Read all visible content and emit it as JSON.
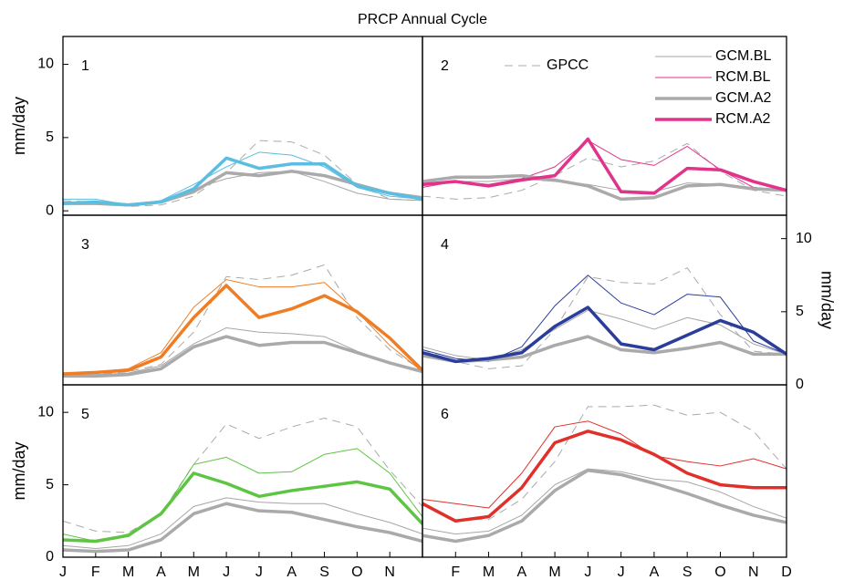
{
  "title": "PRCP Annual Cycle",
  "chart_data": [
    {
      "type": "line",
      "label": "1",
      "ylabel": "mm/day",
      "yaxis_side": "left",
      "ylim": [
        -0.3,
        11.9
      ],
      "yticks": [
        0,
        5,
        10
      ],
      "series": [
        {
          "name": "GPCC",
          "color": "#aaaaaa",
          "linewidth": 1,
          "dashed": true,
          "values": [
            0.7,
            0.6,
            0.3,
            0.4,
            1.0,
            2.6,
            4.8,
            4.7,
            3.8,
            1.8,
            0.8,
            0.7
          ]
        },
        {
          "name": "GCM.BL",
          "color": "#a6a6a6",
          "linewidth": 1,
          "values": [
            0.6,
            0.6,
            0.4,
            0.7,
            1.5,
            2.2,
            2.6,
            2.7,
            2.0,
            1.2,
            0.8,
            0.7
          ]
        },
        {
          "name": "RCM.BL",
          "color": "#5bbde0",
          "linewidth": 1,
          "values": [
            0.8,
            0.8,
            0.4,
            0.7,
            1.8,
            3.0,
            4.0,
            3.8,
            3.0,
            1.6,
            1.0,
            0.8
          ]
        },
        {
          "name": "GCM.A2",
          "color": "#aaaaaa",
          "linewidth": 3.5,
          "values": [
            0.5,
            0.5,
            0.4,
            0.6,
            1.3,
            2.6,
            2.4,
            2.7,
            2.4,
            1.8,
            1.2,
            0.9
          ]
        },
        {
          "name": "RCM.A2",
          "color": "#5bbde0",
          "linewidth": 3.5,
          "values": [
            0.5,
            0.6,
            0.4,
            0.6,
            1.5,
            3.6,
            2.9,
            3.2,
            3.2,
            1.7,
            1.2,
            0.8
          ]
        }
      ]
    },
    {
      "type": "line",
      "label": "2",
      "legend": "upper right",
      "ylim": [
        -0.3,
        11.9
      ],
      "series": [
        {
          "name": "GPCC",
          "color": "#aaaaaa",
          "linewidth": 1,
          "dashed": true,
          "values": [
            1.0,
            0.8,
            0.9,
            1.4,
            2.4,
            3.6,
            3.0,
            3.4,
            4.6,
            2.7,
            1.4,
            1.0
          ]
        },
        {
          "name": "GCM.BL",
          "color": "#a6a6a6",
          "linewidth": 1,
          "values": [
            1.7,
            2.0,
            2.0,
            2.2,
            2.0,
            1.8,
            1.4,
            1.3,
            1.9,
            1.8,
            1.6,
            1.4
          ]
        },
        {
          "name": "RCM.BL",
          "color": "#e0338a",
          "linewidth": 1,
          "values": [
            1.6,
            2.0,
            1.8,
            2.2,
            3.0,
            4.8,
            3.5,
            3.1,
            4.4,
            2.8,
            1.6,
            1.4
          ]
        },
        {
          "name": "GCM.A2",
          "color": "#aaaaaa",
          "linewidth": 3.5,
          "values": [
            2.0,
            2.3,
            2.3,
            2.4,
            2.1,
            1.7,
            0.8,
            0.9,
            1.7,
            1.8,
            1.5,
            1.4
          ]
        },
        {
          "name": "RCM.A2",
          "color": "#e0338a",
          "linewidth": 3.5,
          "values": [
            1.8,
            2.0,
            1.7,
            2.1,
            2.4,
            4.9,
            1.3,
            1.2,
            2.9,
            2.8,
            2.0,
            1.4
          ]
        }
      ]
    },
    {
      "type": "line",
      "label": "3",
      "ylim": [
        0,
        11.6
      ],
      "series": [
        {
          "name": "GPCC",
          "color": "#aaaaaa",
          "linewidth": 1,
          "dashed": true,
          "values": [
            0.7,
            0.7,
            0.9,
            1.4,
            3.6,
            7.4,
            7.2,
            7.5,
            8.2,
            4.6,
            2.4,
            1.0
          ]
        },
        {
          "name": "GCM.BL",
          "color": "#a6a6a6",
          "linewidth": 1,
          "values": [
            0.6,
            0.7,
            0.8,
            1.3,
            2.8,
            3.9,
            3.6,
            3.5,
            3.3,
            2.3,
            1.5,
            1.0
          ]
        },
        {
          "name": "RCM.BL",
          "color": "#ee7d25",
          "linewidth": 1,
          "values": [
            0.8,
            0.9,
            1.1,
            2.2,
            5.3,
            7.2,
            6.7,
            6.7,
            7.0,
            5.0,
            2.7,
            0.9
          ]
        },
        {
          "name": "GCM.A2",
          "color": "#aaaaaa",
          "linewidth": 3.5,
          "values": [
            0.6,
            0.6,
            0.7,
            1.1,
            2.6,
            3.3,
            2.7,
            2.9,
            2.9,
            2.2,
            1.5,
            0.9
          ]
        },
        {
          "name": "RCM.A2",
          "color": "#ee7d25",
          "linewidth": 3.5,
          "values": [
            0.75,
            0.85,
            1.0,
            1.9,
            4.6,
            6.8,
            4.6,
            5.2,
            6.1,
            5.0,
            3.2,
            1.0
          ]
        }
      ]
    },
    {
      "type": "line",
      "label": "4",
      "ylabel": "mm/day",
      "yaxis_side": "right",
      "ylim": [
        0,
        11.6
      ],
      "yticks": [
        0,
        5,
        10
      ],
      "series": [
        {
          "name": "GPCC",
          "color": "#aaaaaa",
          "linewidth": 1,
          "dashed": true,
          "values": [
            2.4,
            1.6,
            1.1,
            1.3,
            3.8,
            7.4,
            7.0,
            6.9,
            8.0,
            4.8,
            2.3,
            2.1
          ]
        },
        {
          "name": "GCM.BL",
          "color": "#a6a6a6",
          "linewidth": 1,
          "values": [
            2.6,
            2.0,
            1.7,
            2.4,
            3.8,
            5.1,
            4.5,
            3.8,
            4.6,
            4.1,
            2.8,
            2.1
          ]
        },
        {
          "name": "RCM.BL",
          "color": "#2b3d9a",
          "linewidth": 1,
          "values": [
            2.4,
            1.8,
            1.6,
            2.6,
            5.4,
            7.5,
            5.6,
            4.8,
            6.2,
            6.0,
            3.0,
            2.1
          ]
        },
        {
          "name": "GCM.A2",
          "color": "#aaaaaa",
          "linewidth": 3.5,
          "values": [
            2.0,
            1.6,
            1.7,
            1.9,
            2.7,
            3.3,
            2.4,
            2.2,
            2.5,
            2.9,
            2.1,
            2.1
          ]
        },
        {
          "name": "RCM.A2",
          "color": "#2b3d9a",
          "linewidth": 3.5,
          "values": [
            2.2,
            1.6,
            1.8,
            2.2,
            4.0,
            5.3,
            2.8,
            2.4,
            3.4,
            4.4,
            3.6,
            2.1
          ]
        }
      ]
    },
    {
      "type": "line",
      "label": "5",
      "ylabel": "mm/day",
      "yaxis_side": "left",
      "ylim": [
        0,
        11.9
      ],
      "yticks": [
        0,
        5,
        10
      ],
      "categories": [
        "J",
        "F",
        "M",
        "A",
        "M",
        "J",
        "J",
        "A",
        "S",
        "O",
        "N",
        null
      ],
      "series": [
        {
          "name": "GPCC",
          "color": "#aaaaaa",
          "linewidth": 1,
          "dashed": true,
          "values": [
            2.5,
            1.8,
            1.7,
            3.0,
            6.4,
            9.2,
            8.2,
            9.0,
            9.6,
            9.0,
            6.0,
            3.5
          ]
        },
        {
          "name": "GCM.BL",
          "color": "#a6a6a6",
          "linewidth": 1,
          "values": [
            0.8,
            0.6,
            0.8,
            1.6,
            3.5,
            4.1,
            3.8,
            3.7,
            3.7,
            3.0,
            2.4,
            1.6
          ]
        },
        {
          "name": "RCM.BL",
          "color": "#5ec443",
          "linewidth": 1,
          "values": [
            1.6,
            1.1,
            1.6,
            2.9,
            6.4,
            6.9,
            5.8,
            5.9,
            7.1,
            7.5,
            5.8,
            2.8
          ]
        },
        {
          "name": "GCM.A2",
          "color": "#aaaaaa",
          "linewidth": 3.5,
          "values": [
            0.5,
            0.4,
            0.5,
            1.2,
            3.0,
            3.7,
            3.2,
            3.1,
            2.6,
            2.1,
            1.7,
            1.1
          ]
        },
        {
          "name": "RCM.A2",
          "color": "#5ec443",
          "linewidth": 3.5,
          "values": [
            1.2,
            1.1,
            1.5,
            3.0,
            5.8,
            5.1,
            4.2,
            4.6,
            4.9,
            5.2,
            4.7,
            2.3
          ]
        }
      ]
    },
    {
      "type": "line",
      "label": "6",
      "ylim": [
        0,
        11.9
      ],
      "categories": [
        null,
        "F",
        "M",
        "A",
        "M",
        "J",
        "J",
        "A",
        "S",
        "O",
        "N",
        "D"
      ],
      "series": [
        {
          "name": "GPCC",
          "color": "#aaaaaa",
          "linewidth": 1,
          "dashed": true,
          "values": [
            3.6,
            2.6,
            2.6,
            4.0,
            6.6,
            10.4,
            10.4,
            10.5,
            9.8,
            10.0,
            8.7,
            6.1
          ]
        },
        {
          "name": "GCM.BL",
          "color": "#a6a6a6",
          "linewidth": 1,
          "values": [
            2.0,
            1.6,
            1.8,
            2.9,
            5.0,
            6.1,
            5.9,
            5.4,
            5.2,
            4.5,
            3.5,
            2.7
          ]
        },
        {
          "name": "RCM.BL",
          "color": "#e0302a",
          "linewidth": 1,
          "values": [
            4.0,
            3.7,
            3.4,
            5.8,
            9.0,
            9.4,
            8.5,
            7.0,
            6.6,
            6.3,
            6.8,
            6.1
          ]
        },
        {
          "name": "GCM.A2",
          "color": "#aaaaaa",
          "linewidth": 3.5,
          "values": [
            1.5,
            1.1,
            1.5,
            2.5,
            4.6,
            6.0,
            5.7,
            5.1,
            4.4,
            3.6,
            2.9,
            2.4
          ]
        },
        {
          "name": "RCM.A2",
          "color": "#e0302a",
          "linewidth": 3.5,
          "values": [
            3.7,
            2.5,
            2.8,
            4.8,
            7.9,
            8.7,
            8.1,
            7.1,
            5.8,
            5.0,
            4.8,
            4.8
          ]
        }
      ]
    }
  ]
}
